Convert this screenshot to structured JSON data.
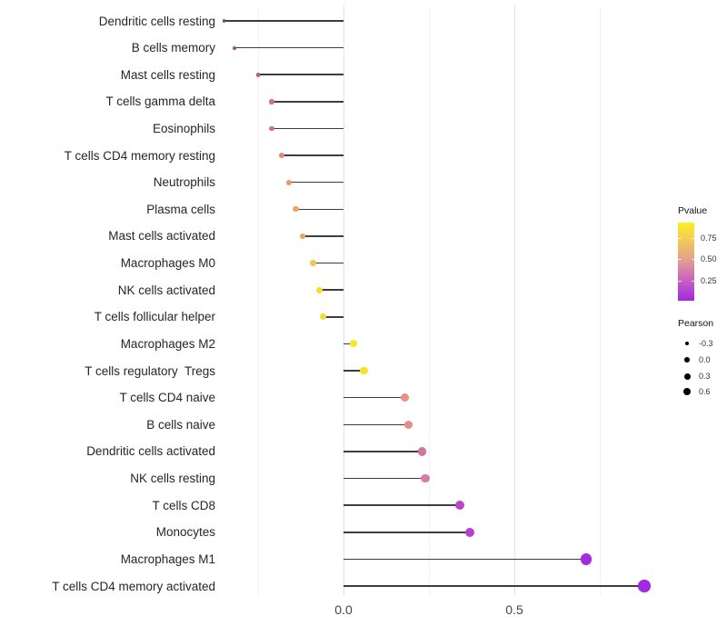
{
  "chart_data": {
    "type": "scatter",
    "variant": "lollipop",
    "title": "",
    "xlabel": "",
    "ylabel": "",
    "x_tick_labels": [
      "0.0",
      "0.5"
    ],
    "x_tick_values": [
      0.0,
      0.5
    ],
    "xlim": [
      -0.36,
      1.1
    ],
    "grid": {
      "major_at": [
        0.0,
        0.5
      ],
      "minor_at": [
        -0.25,
        0.25,
        0.75
      ]
    },
    "legend_position": "right",
    "categories": [
      "Dendritic cells resting",
      "B cells memory",
      "Mast cells resting",
      "T cells gamma delta",
      "Eosinophils",
      "T cells CD4 memory resting",
      "Neutrophils",
      "Plasma cells",
      "Mast cells activated",
      "Macrophages M0",
      "NK cells activated",
      "T cells follicular helper",
      "Macrophages M2",
      "T cells regulatory  Tregs",
      "T cells CD4 naive",
      "B cells naive",
      "Dendritic cells activated",
      "NK cells resting",
      "T cells CD8",
      "Monocytes",
      "Macrophages M1",
      "T cells CD4 memory activated"
    ],
    "points": [
      {
        "label": "Dendritic cells resting",
        "pearson": -0.35,
        "pvalue_approx": 0.15,
        "color": "#9c35a6"
      },
      {
        "label": "B cells memory",
        "pearson": -0.32,
        "pvalue_approx": 0.2,
        "color": "#ab3cb1"
      },
      {
        "label": "Mast cells resting",
        "pearson": -0.25,
        "pvalue_approx": 0.3,
        "color": "#c0589c"
      },
      {
        "label": "T cells gamma delta",
        "pearson": -0.21,
        "pvalue_approx": 0.4,
        "color": "#cf6e8e"
      },
      {
        "label": "Eosinophils",
        "pearson": -0.21,
        "pvalue_approx": 0.42,
        "color": "#d17080"
      },
      {
        "label": "T cells CD4 memory resting",
        "pearson": -0.18,
        "pvalue_approx": 0.5,
        "color": "#e08a72"
      },
      {
        "label": "Neutrophils",
        "pearson": -0.16,
        "pvalue_approx": 0.55,
        "color": "#e89a67"
      },
      {
        "label": "Plasma cells",
        "pearson": -0.14,
        "pvalue_approx": 0.6,
        "color": "#eda763"
      },
      {
        "label": "Mast cells activated",
        "pearson": -0.12,
        "pvalue_approx": 0.6,
        "color": "#eba45c"
      },
      {
        "label": "Macrophages M0",
        "pearson": -0.09,
        "pvalue_approx": 0.72,
        "color": "#f0c84b"
      },
      {
        "label": "NK cells activated",
        "pearson": -0.07,
        "pvalue_approx": 0.8,
        "color": "#f5dc35"
      },
      {
        "label": "T cells follicular helper",
        "pearson": -0.06,
        "pvalue_approx": 0.8,
        "color": "#f5dc35"
      },
      {
        "label": "Macrophages M2",
        "pearson": 0.03,
        "pvalue_approx": 0.9,
        "color": "#f8ea20"
      },
      {
        "label": "T cells regulatory  Tregs",
        "pearson": 0.06,
        "pvalue_approx": 0.85,
        "color": "#f7e12c"
      },
      {
        "label": "T cells CD4 naive",
        "pearson": 0.18,
        "pvalue_approx": 0.5,
        "color": "#e9937f"
      },
      {
        "label": "B cells naive",
        "pearson": 0.19,
        "pvalue_approx": 0.48,
        "color": "#e68e80"
      },
      {
        "label": "Dendritic cells activated",
        "pearson": 0.23,
        "pvalue_approx": 0.35,
        "color": "#d3739f"
      },
      {
        "label": "NK cells resting",
        "pearson": 0.24,
        "pvalue_approx": 0.32,
        "color": "#d57cab"
      },
      {
        "label": "T cells CD8",
        "pearson": 0.34,
        "pvalue_approx": 0.15,
        "color": "#bb45c9"
      },
      {
        "label": "Monocytes",
        "pearson": 0.37,
        "pvalue_approx": 0.12,
        "color": "#b93ecd"
      },
      {
        "label": "Macrophages M1",
        "pearson": 0.71,
        "pvalue_approx": 0.05,
        "color": "#a32be2"
      },
      {
        "label": "T cells CD4 memory activated",
        "pearson": 0.88,
        "pvalue_approx": 0.03,
        "color": "#a02ae0"
      }
    ]
  },
  "legends": {
    "pvalue": {
      "title": "Pvalue",
      "tick_labels": [
        "0.75",
        "0.50",
        "0.25"
      ],
      "gradient_stops_top_to_bottom": [
        "#f9f023",
        "#f2c55e",
        "#e29a92",
        "#c65fc5",
        "#a228e0"
      ]
    },
    "pearson": {
      "title": "Pearson",
      "sizes": [
        {
          "label": "-0.3",
          "value": -0.3
        },
        {
          "label": "0.0",
          "value": 0.0
        },
        {
          "label": "0.3",
          "value": 0.3
        },
        {
          "label": "0.6",
          "value": 0.6
        }
      ],
      "dot_color": "#000000"
    }
  },
  "colors": {
    "background": "#ffffff",
    "stem": "#3d3d3d",
    "grid_major": "#e3e3e3",
    "grid_minor": "#f2f2f2",
    "axis_tick_text": "#454545",
    "category_text": "#262626"
  }
}
